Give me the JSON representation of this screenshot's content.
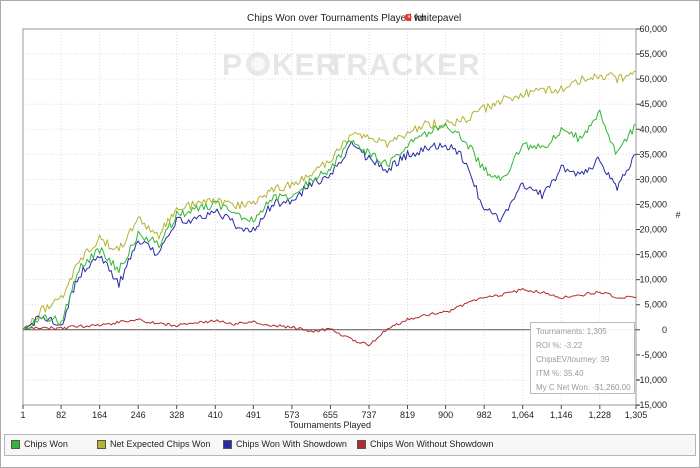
{
  "title": "Chips Won over Tournaments Played for",
  "player": "whitepavel",
  "watermark": {
    "left": "P",
    "middle": "KER",
    "right": "TRACKER"
  },
  "xlabel": "Tournaments Played",
  "ylabel": "#",
  "colors": {
    "chips_won": "#33b536",
    "net_expected": "#b3b334",
    "with_showdown": "#2a2aa6",
    "without_showdown": "#b32b2b",
    "zero_line": "#555555"
  },
  "stats": {
    "tournaments": "Tournaments: 1,305",
    "roi": "ROI %: -3.22",
    "chips_ev": "ChipsEV/tourney: 39",
    "itm": "ITM %: 35.40",
    "net_won": "My C Net Won: -$1,260.00"
  },
  "legend": [
    {
      "label": "Chips Won",
      "color": "#33b536"
    },
    {
      "label": "Net Expected Chips Won",
      "color": "#b3b334"
    },
    {
      "label": "Chips Won With Showdown",
      "color": "#2a2aa6"
    },
    {
      "label": "Chips Won Without Showdown",
      "color": "#b32b2b"
    }
  ],
  "chart_data": {
    "type": "line",
    "title": "Chips Won over Tournaments Played for whitepavel",
    "xlabel": "Tournaments Played",
    "ylabel": "#",
    "xlim": [
      1,
      1305
    ],
    "ylim": [
      -15000,
      60000
    ],
    "x_ticks": [
      1,
      82,
      164,
      246,
      328,
      410,
      491,
      573,
      655,
      737,
      819,
      900,
      982,
      1064,
      1146,
      1228,
      1305
    ],
    "x_tick_labels": [
      "1",
      "82",
      "164",
      "246",
      "328",
      "410",
      "491",
      "573",
      "655",
      "737",
      "819",
      "900",
      "982",
      "1,064",
      "1,146",
      "1,228",
      "1,305"
    ],
    "y_ticks": [
      -15000,
      -10000,
      -5000,
      0,
      5000,
      10000,
      15000,
      20000,
      25000,
      30000,
      35000,
      40000,
      45000,
      50000,
      55000,
      60000
    ],
    "y_tick_labels": [
      "-15,000",
      "-10,000",
      "-5,000",
      "0",
      "5,000",
      "10,000",
      "15,000",
      "20,000",
      "25,000",
      "30,000",
      "35,000",
      "40,000",
      "45,000",
      "50,000",
      "55,000",
      "60,000"
    ],
    "x": [
      1,
      40,
      82,
      120,
      164,
      205,
      246,
      290,
      328,
      370,
      410,
      450,
      491,
      530,
      573,
      615,
      655,
      700,
      737,
      780,
      819,
      860,
      900,
      940,
      982,
      1020,
      1064,
      1105,
      1146,
      1190,
      1228,
      1265,
      1305
    ],
    "series": [
      {
        "name": "Chips Won",
        "key": "chips_won",
        "values": [
          0,
          3000,
          1500,
          12000,
          16000,
          12000,
          19000,
          17000,
          23000,
          24000,
          25000,
          23000,
          22000,
          26000,
          27000,
          30000,
          32000,
          38000,
          35000,
          33000,
          37000,
          39000,
          41000,
          38000,
          32000,
          30000,
          37000,
          36000,
          40000,
          38000,
          43000,
          35000,
          41000
        ]
      },
      {
        "name": "Net Expected Chips Won",
        "key": "net_expected",
        "values": [
          0,
          4000,
          6000,
          14000,
          18000,
          16000,
          22000,
          19000,
          24000,
          25000,
          26000,
          25000,
          25000,
          28000,
          29000,
          31000,
          34000,
          39000,
          38000,
          37000,
          39000,
          41000,
          41000,
          42000,
          44000,
          46000,
          47000,
          48000,
          48000,
          50000,
          51000,
          50000,
          51500
        ]
      },
      {
        "name": "Chips Won With Showdown",
        "key": "with_showdown",
        "values": [
          0,
          2500,
          1000,
          11000,
          15000,
          9000,
          18000,
          15000,
          22000,
          22000,
          24000,
          21000,
          20000,
          25000,
          26000,
          29000,
          31000,
          37000,
          34000,
          32000,
          35000,
          36000,
          37000,
          34000,
          24000,
          22000,
          29000,
          27000,
          32000,
          31000,
          34000,
          28000,
          35000
        ]
      },
      {
        "name": "Chips Won Without Showdown",
        "key": "without_showdown",
        "values": [
          0,
          400,
          300,
          700,
          800,
          1500,
          2000,
          1200,
          900,
          1500,
          1800,
          1200,
          1500,
          900,
          500,
          -300,
          100,
          -2000,
          -3000,
          500,
          2000,
          3000,
          3500,
          5000,
          6500,
          7000,
          8000,
          7500,
          6500,
          7000,
          7500,
          6500,
          6500
        ]
      }
    ]
  }
}
